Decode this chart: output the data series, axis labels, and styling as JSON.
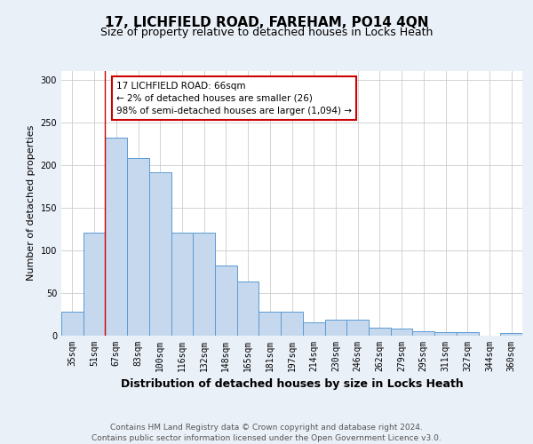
{
  "title": "17, LICHFIELD ROAD, FAREHAM, PO14 4QN",
  "subtitle": "Size of property relative to detached houses in Locks Heath",
  "xlabel": "Distribution of detached houses by size in Locks Heath",
  "ylabel": "Number of detached properties",
  "categories": [
    "35sqm",
    "51sqm",
    "67sqm",
    "83sqm",
    "100sqm",
    "116sqm",
    "132sqm",
    "148sqm",
    "165sqm",
    "181sqm",
    "197sqm",
    "214sqm",
    "230sqm",
    "246sqm",
    "262sqm",
    "279sqm",
    "295sqm",
    "311sqm",
    "327sqm",
    "344sqm",
    "360sqm"
  ],
  "values": [
    28,
    120,
    232,
    208,
    191,
    120,
    120,
    82,
    63,
    28,
    28,
    15,
    18,
    18,
    9,
    8,
    5,
    4,
    4,
    0,
    3
  ],
  "bar_color": "#c5d8ed",
  "bar_edge_color": "#5b9bd5",
  "annotation_text": "17 LICHFIELD ROAD: 66sqm\n← 2% of detached houses are smaller (26)\n98% of semi-detached houses are larger (1,094) →",
  "annotation_box_color": "#ffffff",
  "annotation_box_edge": "#cc0000",
  "ylim": [
    0,
    310
  ],
  "yticks": [
    0,
    50,
    100,
    150,
    200,
    250,
    300
  ],
  "footer": "Contains HM Land Registry data © Crown copyright and database right 2024.\nContains public sector information licensed under the Open Government Licence v3.0.",
  "bg_color": "#eaf0f8",
  "plot_bg_color": "#ffffff",
  "grid_color": "#cccccc",
  "title_fontsize": 11,
  "subtitle_fontsize": 9,
  "xlabel_fontsize": 9,
  "ylabel_fontsize": 8,
  "tick_fontsize": 7,
  "footer_fontsize": 6.5,
  "red_line_color": "#cc0000",
  "red_line_x": 1.5
}
